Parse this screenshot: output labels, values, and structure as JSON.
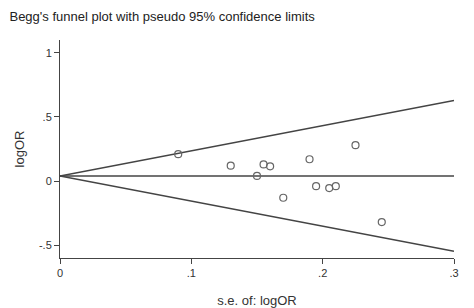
{
  "chart_data": {
    "type": "scatter",
    "title": "Begg's funnel plot with pseudo 95% confidence limits",
    "xlabel": "s.e. of: logOR",
    "ylabel": "logOR",
    "xlim": [
      0,
      0.3
    ],
    "ylim": [
      -0.6,
      1.1
    ],
    "xticks": [
      0,
      {
        "value": 0.1,
        "label": ".1"
      },
      {
        "value": 0.2,
        "label": ".2"
      },
      {
        "value": 0.3,
        "label": ".3"
      }
    ],
    "yticks": [
      {
        "value": -0.5,
        "label": "-.5"
      },
      0,
      {
        "value": 0.5,
        "label": ".5"
      },
      1
    ],
    "grid": false,
    "series": [
      {
        "type": "line",
        "color": "#444444",
        "line_style": "solid",
        "x": [
          0,
          0.3
        ],
        "values": [
          0.04,
          0.628
        ]
      },
      {
        "type": "line",
        "color": "#444444",
        "line_style": "solid",
        "x": [
          0,
          0.3
        ],
        "values": [
          0.04,
          -0.548
        ]
      },
      {
        "type": "line",
        "color": "#444444",
        "line_style": "solid",
        "x": [
          0,
          0.3
        ],
        "values": [
          0.04,
          0.04
        ]
      },
      {
        "type": "scatter",
        "color": "#666666",
        "marker": "circle-open",
        "x": [
          0.09,
          0.13,
          0.15,
          0.155,
          0.16,
          0.17,
          0.19,
          0.195,
          0.205,
          0.21,
          0.225,
          0.245
        ],
        "values": [
          0.21,
          0.12,
          0.04,
          0.13,
          0.115,
          -0.13,
          0.17,
          -0.04,
          -0.055,
          -0.04,
          0.28,
          -0.32
        ]
      }
    ]
  }
}
